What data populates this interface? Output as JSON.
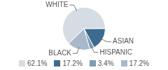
{
  "chart_data": {
    "type": "pie",
    "categories": [
      "WHITE",
      "ASIAN",
      "HISPANIC",
      "BLACK"
    ],
    "values": [
      62.1,
      17.2,
      3.4,
      17.2
    ],
    "value_labels": [
      "62.1%",
      "17.2%",
      "3.4%",
      "17.2%"
    ],
    "colors": [
      "#d5dce4",
      "#3d6b8f",
      "#7f9ab3",
      "#a9b9c9"
    ]
  }
}
